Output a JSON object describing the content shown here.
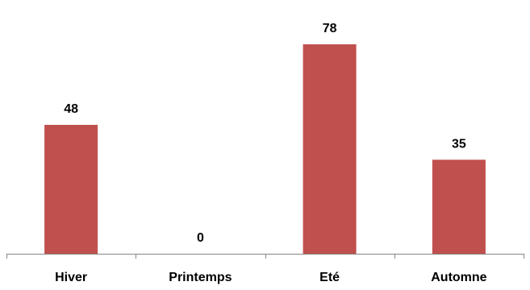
{
  "chart_data": {
    "type": "bar",
    "categories": [
      "Hiver",
      "Printemps",
      "Eté",
      "Automne"
    ],
    "values": [
      48,
      0,
      78,
      35
    ],
    "data_labels": [
      "48",
      "0",
      "78",
      "35"
    ],
    "title": "",
    "xlabel": "",
    "ylabel": "",
    "ylim": [
      0,
      90
    ],
    "grid": false,
    "legend": "none",
    "bar_color": "#C0504D",
    "axis_color": "#868686"
  }
}
